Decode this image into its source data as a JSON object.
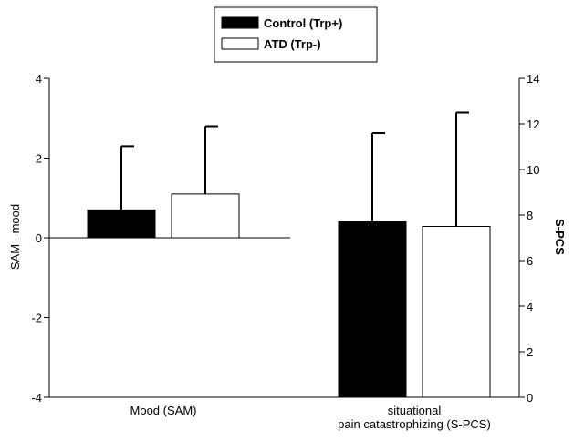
{
  "chart_data": {
    "type": "bar",
    "legend": {
      "placement": "top-center",
      "entries": [
        {
          "name": "Control (Trp+)",
          "color": "#000000"
        },
        {
          "name": "ATD (Trp-)",
          "color": "#ffffff"
        }
      ]
    },
    "categories": [
      {
        "lines": [
          "Mood (SAM)"
        ],
        "axis": "left"
      },
      {
        "lines": [
          "situational",
          "pain catastrophizing (S-PCS)"
        ],
        "axis": "right"
      }
    ],
    "left_axis": {
      "label": "SAM - mood",
      "ylim": [
        -4,
        4
      ],
      "ticks": [
        4,
        2,
        0,
        -2,
        -4
      ]
    },
    "right_axis": {
      "label": "S-PCS",
      "ylim": [
        0,
        14
      ],
      "ticks": [
        14,
        12,
        10,
        8,
        6,
        4,
        2,
        0
      ]
    },
    "series": [
      {
        "name": "Control (Trp+)",
        "color": "#000000",
        "values": [
          0.7,
          7.7
        ],
        "errors": [
          1.6,
          3.9
        ]
      },
      {
        "name": "ATD (Trp-)",
        "color": "#ffffff",
        "values": [
          1.1,
          7.5
        ],
        "errors": [
          1.7,
          5.0
        ]
      }
    ],
    "grid": false
  }
}
